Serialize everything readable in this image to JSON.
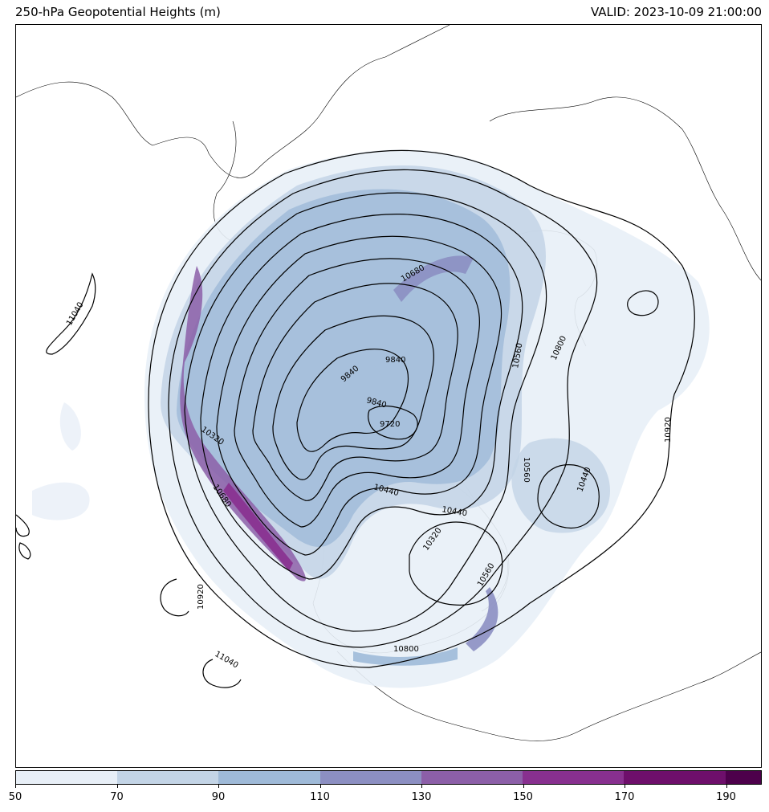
{
  "title_left": "250-hPa Geopotential Heights (m)",
  "title_right": "VALID: 2023-10-09 21:00:00",
  "colorbar": {
    "levels": [
      50,
      70,
      90,
      110,
      130,
      150,
      170,
      190
    ],
    "tick_labels": [
      "50",
      "70",
      "90",
      "110",
      "130",
      "150",
      "170",
      "190"
    ],
    "colors": [
      "#e8eff7",
      "#c3d4e6",
      "#9fbad8",
      "#8c8fc2",
      "#8c5fa8",
      "#88308f",
      "#6e0f6b",
      "#4d004b"
    ]
  },
  "contour_labels": [
    "11040",
    "10800",
    "10560",
    "9840",
    "9840",
    "9840",
    "9720",
    "10320",
    "10680",
    "10440",
    "10440",
    "10560",
    "10440",
    "10920",
    "10920",
    "11040",
    "10800",
    "10320",
    "10560",
    "10680"
  ],
  "map": {
    "projection": "north-polar stereographic",
    "field": "250-hPa geopotential height contours with shaded wind speed",
    "coastlines": true,
    "borders": true
  }
}
